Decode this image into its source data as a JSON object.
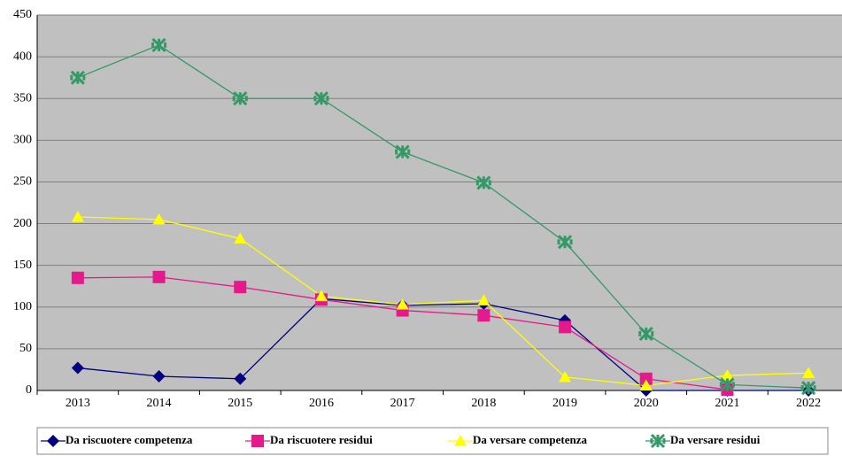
{
  "chart_data": {
    "type": "line",
    "categories": [
      "2013",
      "2014",
      "2015",
      "2016",
      "2017",
      "2018",
      "2019",
      "2020",
      "2021",
      "2022"
    ],
    "series": [
      {
        "name": "Da riscuotere competenza",
        "color": "#000080",
        "marker": "diamond",
        "values": [
          27,
          17,
          14,
          110,
          102,
          104,
          84,
          0,
          0,
          0
        ]
      },
      {
        "name": "Da riscuotere residui",
        "color": "#e6198c",
        "marker": "square",
        "values": [
          135,
          136,
          124,
          109,
          96,
          90,
          76,
          14,
          1,
          null
        ]
      },
      {
        "name": "Da versare competenza",
        "color": "#ffff00",
        "marker": "triangle",
        "values": [
          208,
          205,
          182,
          113,
          103,
          108,
          16,
          6,
          18,
          21
        ]
      },
      {
        "name": "Da versare residui",
        "color": "#339966",
        "marker": "star",
        "values": [
          375,
          414,
          350,
          350,
          286,
          249,
          178,
          68,
          7,
          3
        ]
      }
    ],
    "ylim": [
      0,
      450
    ],
    "yticks": [
      0,
      50,
      100,
      150,
      200,
      250,
      300,
      350,
      400,
      450
    ],
    "grid": true,
    "legend": "bottom"
  }
}
